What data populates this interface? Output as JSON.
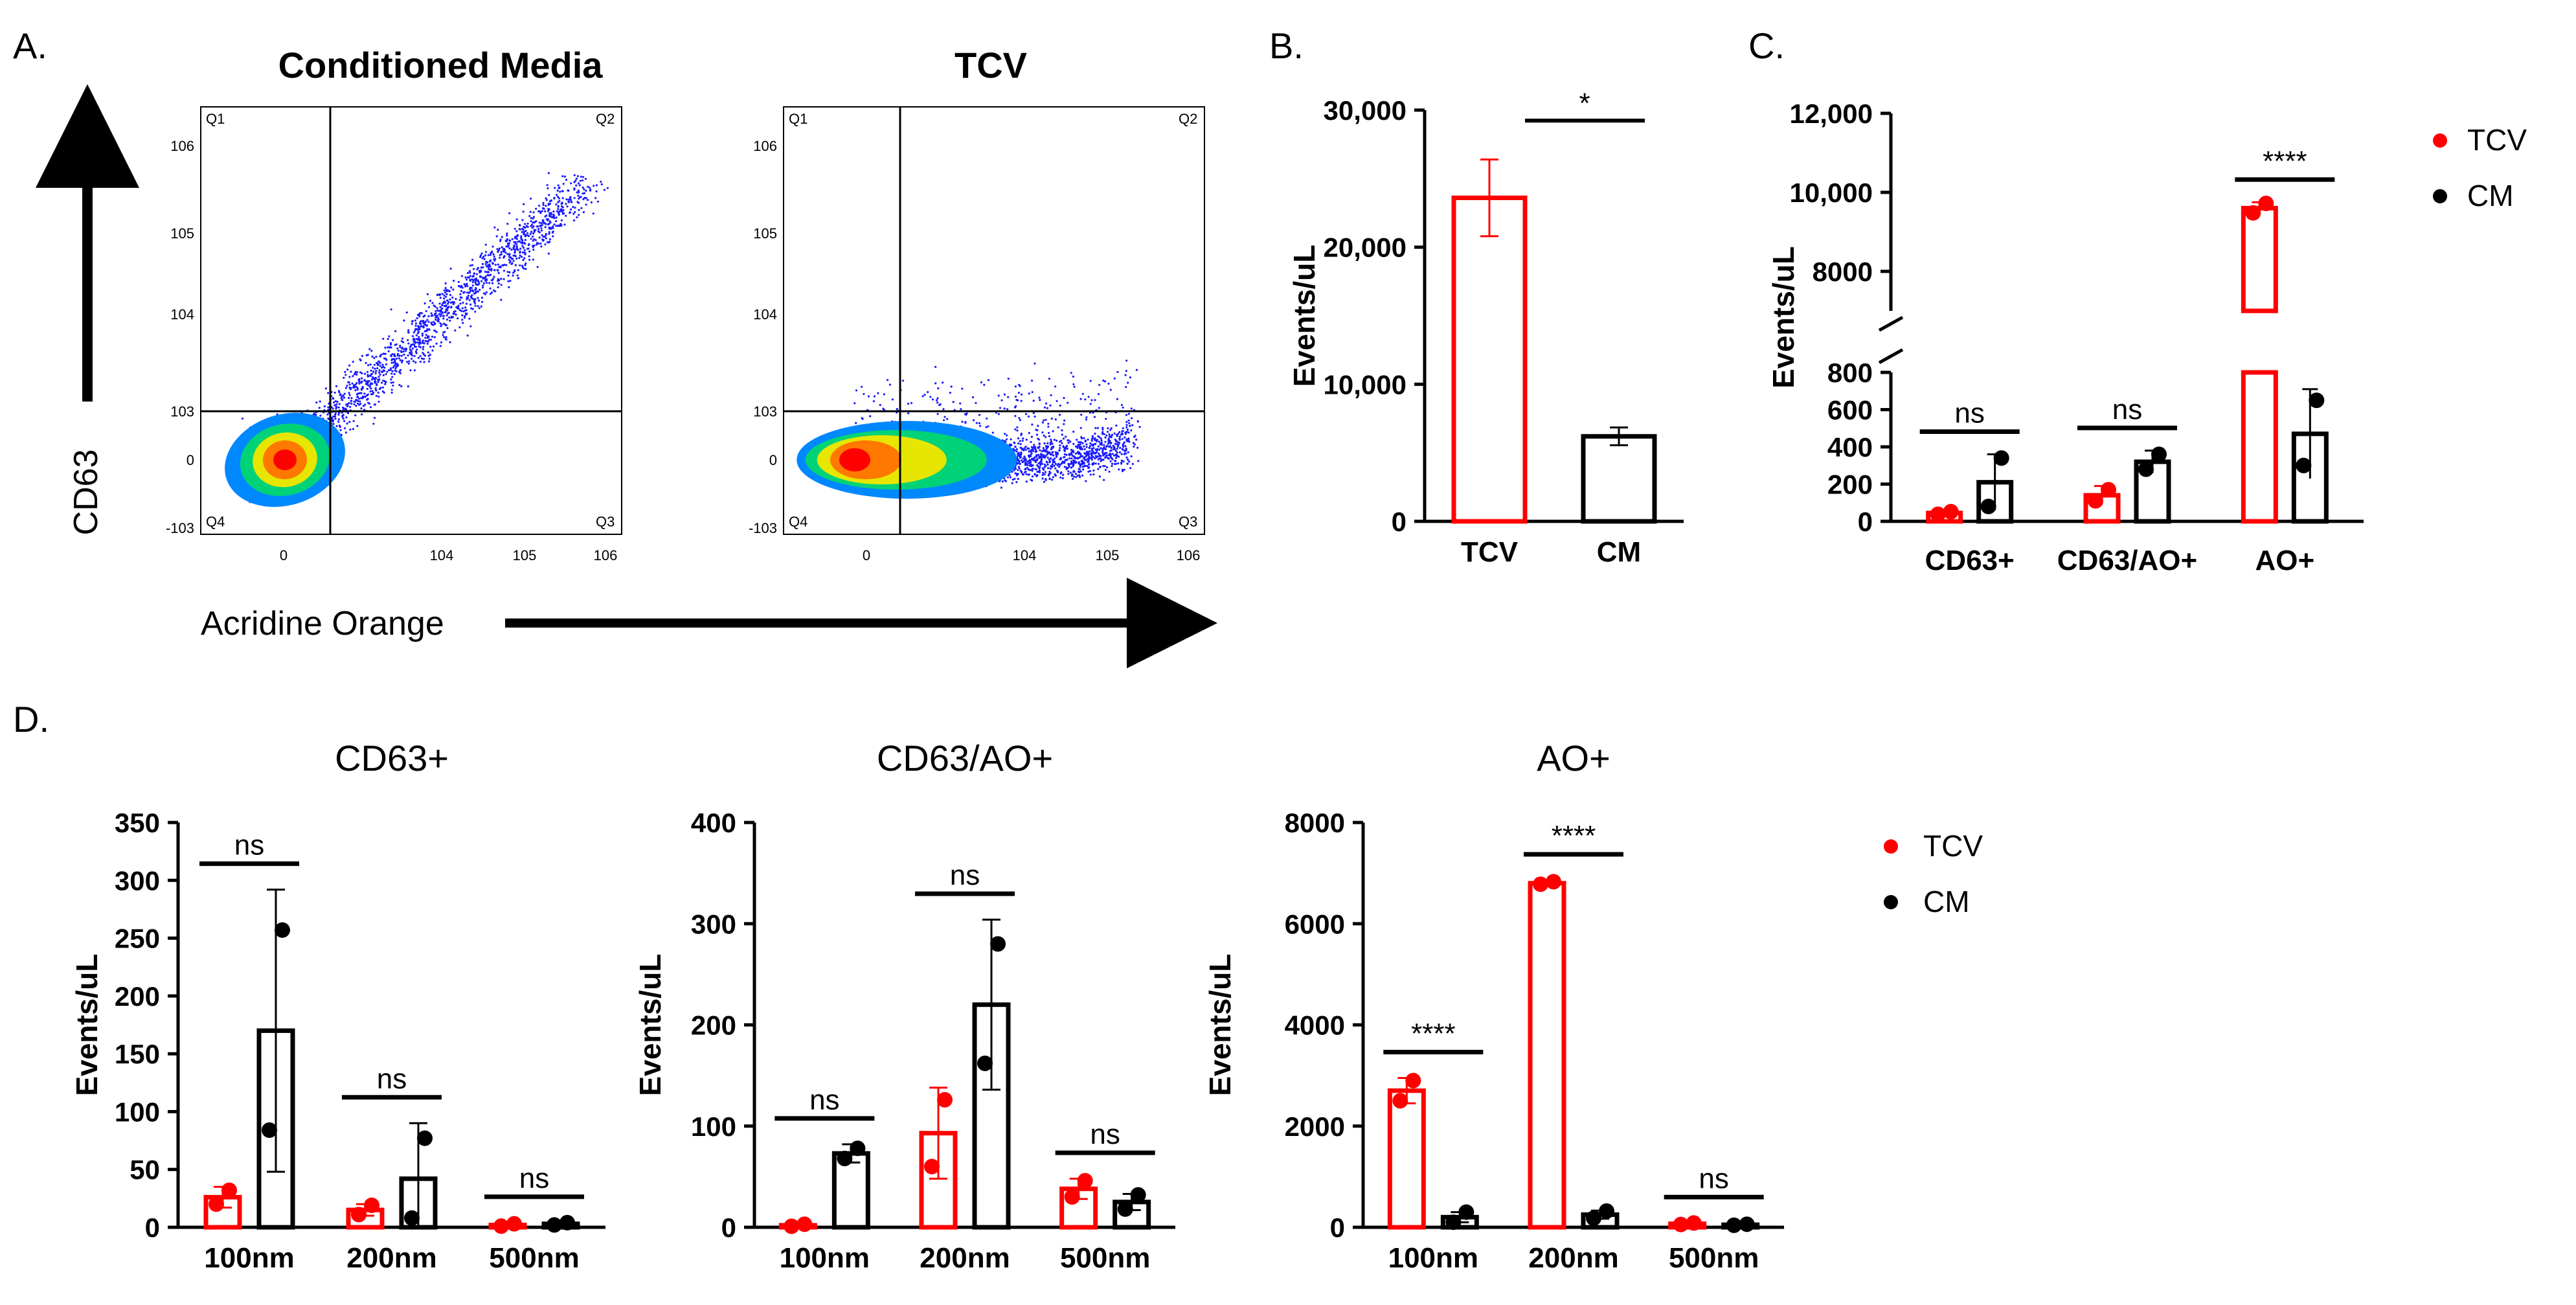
{
  "figure": {
    "colors": {
      "tcv": "#ff0000",
      "cm": "#000000"
    },
    "panel_labels": {
      "a": "A.",
      "b": "B.",
      "c": "C.",
      "d": "D."
    }
  },
  "chart_data": [
    {
      "id": "A1",
      "type": "scatter",
      "title": "Conditioned Media",
      "xlabel": "Acridine Orange",
      "ylabel": "CD63",
      "quadrants": [
        "Q1",
        "Q2",
        "Q3",
        "Q4"
      ],
      "x_ticks": [
        "0",
        "10^4",
        "10^5",
        "10^6"
      ],
      "y_ticks": [
        "-10^3",
        "0",
        "10^3",
        "10^4",
        "10^5",
        "10^6"
      ],
      "gate_x": 560,
      "gate_y": 1000
    },
    {
      "id": "A2",
      "type": "scatter",
      "title": "TCV",
      "quadrants": [
        "Q1",
        "Q2",
        "Q3",
        "Q4"
      ],
      "x_ticks": [
        "0",
        "10^4",
        "10^5",
        "10^6"
      ],
      "y_ticks": [
        "-10^3",
        "0",
        "10^3",
        "10^4",
        "10^5",
        "10^6"
      ],
      "gate_x": 560,
      "gate_y": 1000
    },
    {
      "id": "B",
      "type": "bar",
      "ylabel": "Events/uL",
      "categories": [
        "TCV",
        "CM"
      ],
      "values": [
        23600,
        6200
      ],
      "errors": [
        2800,
        650
      ],
      "ylim": [
        0,
        30000
      ],
      "yticks": [
        0,
        10000,
        20000,
        30000
      ],
      "ytick_labels": [
        "0",
        "10,000",
        "20,000",
        "30,000"
      ],
      "significance": [
        {
          "label": "*",
          "between": [
            0,
            1
          ]
        }
      ]
    },
    {
      "id": "C",
      "type": "bar",
      "ylabel": "Events/uL",
      "categories": [
        "CD63+",
        "CD63/AO+",
        "AO+"
      ],
      "series": [
        {
          "name": "TCV",
          "values": [
            45,
            140,
            9600
          ],
          "errors": [
            12,
            50,
            150
          ],
          "points": [
            [
              38,
              52
            ],
            [
              110,
              170
            ],
            [
              9480,
              9720
            ]
          ]
        },
        {
          "name": "CM",
          "values": [
            210,
            320,
            470
          ],
          "errors": [
            150,
            60,
            240
          ],
          "points": [
            [
              80,
              340
            ],
            [
              280,
              360
            ],
            [
              300,
              650
            ]
          ]
        }
      ],
      "axis_break": {
        "lower": [
          0,
          800
        ],
        "upper": [
          7000,
          12000
        ]
      },
      "ytick_labels": [
        "0",
        "200",
        "400",
        "600",
        "800",
        "8000",
        "10,000",
        "12,000"
      ],
      "significance": [
        "ns",
        "ns",
        "****"
      ],
      "legend": [
        "TCV",
        "CM"
      ]
    },
    {
      "id": "D1",
      "type": "bar",
      "title": "CD63+",
      "ylabel": "Events/uL",
      "categories": [
        "100nm",
        "200nm",
        "500nm"
      ],
      "series": [
        {
          "name": "TCV",
          "values": [
            26,
            15,
            2
          ],
          "errors": [
            9,
            5,
            1
          ],
          "points": [
            [
              20,
              32
            ],
            [
              11,
              19
            ],
            [
              1,
              3
            ]
          ]
        },
        {
          "name": "CM",
          "values": [
            170,
            42,
            3
          ],
          "errors": [
            122,
            48,
            1
          ],
          "points": [
            [
              84,
              257
            ],
            [
              8,
              77
            ],
            [
              2,
              4
            ]
          ]
        }
      ],
      "ylim": [
        0,
        350
      ],
      "ytick_labels": [
        "0",
        "50",
        "100",
        "150",
        "200",
        "250",
        "300",
        "350"
      ],
      "significance": [
        "ns",
        "ns",
        "ns"
      ]
    },
    {
      "id": "D2",
      "type": "bar",
      "title": "CD63/AO+",
      "ylabel": "Events/uL",
      "categories": [
        "100nm",
        "200nm",
        "500nm"
      ],
      "series": [
        {
          "name": "TCV",
          "values": [
            2,
            93,
            38
          ],
          "errors": [
            1,
            45,
            10
          ],
          "points": [
            [
              1,
              3
            ],
            [
              60,
              126
            ],
            [
              30,
              46
            ]
          ]
        },
        {
          "name": "CM",
          "values": [
            73,
            220,
            25
          ],
          "errors": [
            9,
            84,
            8
          ],
          "points": [
            [
              68,
              78
            ],
            [
              162,
              280
            ],
            [
              18,
              32
            ]
          ]
        }
      ],
      "ylim": [
        0,
        400
      ],
      "ytick_labels": [
        "0",
        "100",
        "200",
        "300",
        "400"
      ],
      "significance": [
        "ns",
        "ns",
        "ns"
      ]
    },
    {
      "id": "D3",
      "type": "bar",
      "title": "AO+",
      "ylabel": "Events/uL",
      "categories": [
        "100nm",
        "200nm",
        "500nm"
      ],
      "series": [
        {
          "name": "TCV",
          "values": [
            2700,
            6800,
            70
          ],
          "errors": [
            250,
            60,
            15
          ],
          "points": [
            [
              2500,
              2900
            ],
            [
              6780,
              6830
            ],
            [
              55,
              85
            ]
          ]
        },
        {
          "name": "CM",
          "values": [
            200,
            250,
            50
          ],
          "errors": [
            100,
            80,
            10
          ],
          "points": [
            [
              100,
              300
            ],
            [
              180,
              320
            ],
            [
              40,
              60
            ]
          ]
        }
      ],
      "ylim": [
        0,
        8000
      ],
      "ytick_labels": [
        "0",
        "2000",
        "4000",
        "6000",
        "8000"
      ],
      "significance": [
        "****",
        "****",
        "ns"
      ],
      "legend": [
        "TCV",
        "CM"
      ]
    }
  ]
}
